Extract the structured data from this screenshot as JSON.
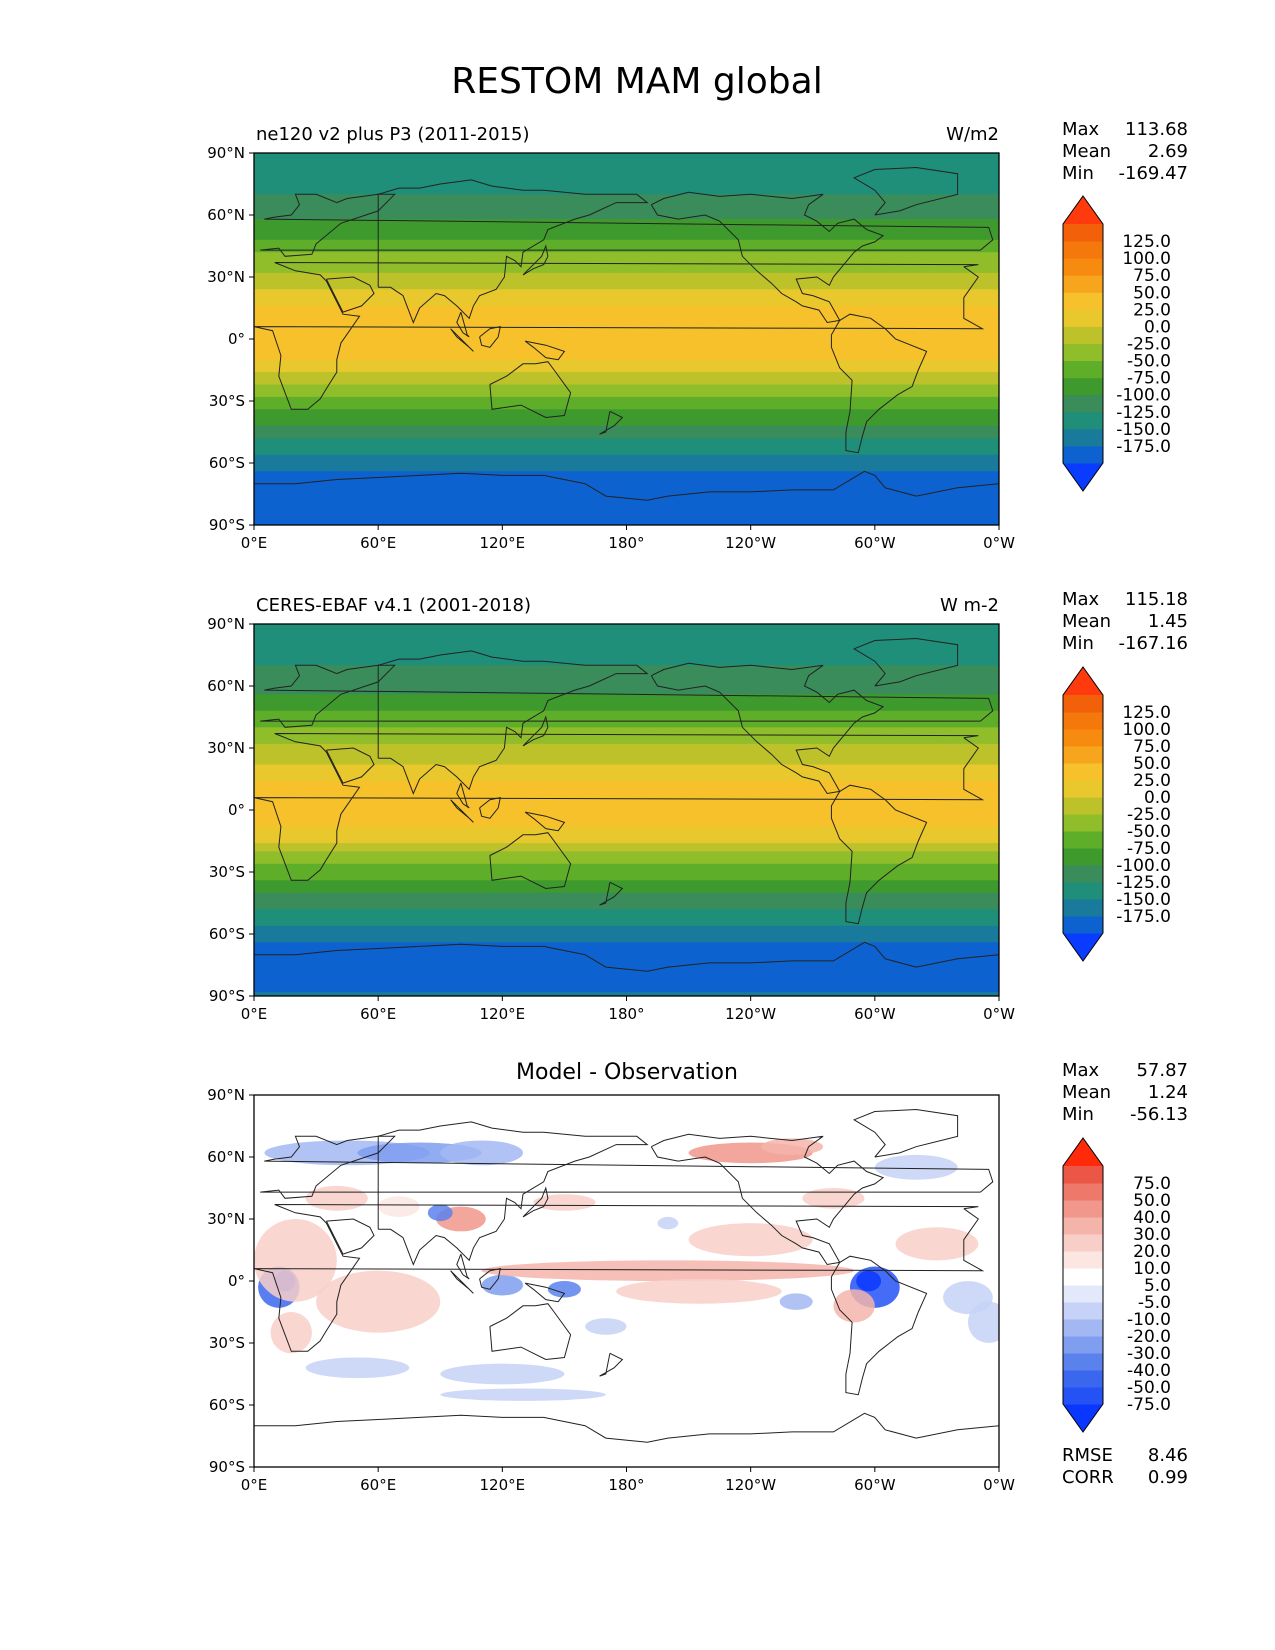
{
  "title": "RESTOM MAM global",
  "x_ticks": [
    "0°E",
    "60°E",
    "120°E",
    "180°",
    "120°W",
    "60°W",
    "0°W"
  ],
  "y_ticks": [
    "90°N",
    "60°N",
    "30°N",
    "0°",
    "30°S",
    "60°S",
    "90°S"
  ],
  "stat_labels": {
    "max": "Max",
    "mean": "Mean",
    "min": "Min",
    "rmse": "RMSE",
    "corr": "CORR"
  },
  "colors": {
    "abs": [
      "#0a3cff",
      "#0d62d0",
      "#197a9c",
      "#1f8f7a",
      "#3a8c5a",
      "#3f9a2e",
      "#5fae2a",
      "#8fbe2a",
      "#bec22a",
      "#e8c82c",
      "#f6c12a",
      "#f7a51c",
      "#f78b10",
      "#f4780b",
      "#f2600a",
      "#ff3a0d"
    ],
    "diff": [
      "#0a37ff",
      "#2452f5",
      "#3b67ee",
      "#5a82ec",
      "#7f9ef0",
      "#a3b8f3",
      "#c6d2f7",
      "#e3e9fb",
      "#ffffff",
      "#fbe6e2",
      "#f8cfc8",
      "#f4b4aa",
      "#f1978b",
      "#ee786a",
      "#eb5646",
      "#ff2a0a"
    ]
  },
  "chart_data": [
    {
      "type": "heatmap",
      "panel_label": "ne120 v2 plus P3 (2011-2015)",
      "units": "W/m2",
      "stats": {
        "max": "113.68",
        "mean": "2.69",
        "min": "-169.47"
      },
      "xlim": [
        0,
        360
      ],
      "ylim": [
        -90,
        90
      ],
      "contour_levels": [
        "125.0",
        "100.0",
        "75.0",
        "50.0",
        "25.0",
        "0.0",
        "-25.0",
        "-50.0",
        "-75.0",
        "-100.0",
        "-125.0",
        "-150.0",
        "-175.0"
      ],
      "colormap": "abs",
      "zonal_mean_profile": {
        "lat": [
          -90,
          -75,
          -68,
          -60,
          -52,
          -45,
          -38,
          -30,
          -22,
          -15,
          -8,
          0,
          8,
          15,
          22,
          30,
          38,
          45,
          52,
          60,
          70,
          80,
          90
        ],
        "value": [
          -150,
          -175,
          -162,
          -138,
          -112,
          -88,
          -62,
          -35,
          -5,
          30,
          55,
          70,
          65,
          50,
          28,
          5,
          -15,
          -38,
          -60,
          -82,
          -100,
          -105,
          -105
        ]
      }
    },
    {
      "type": "heatmap",
      "panel_label": "CERES-EBAF v4.1 (2001-2018)",
      "units": "W m-2",
      "stats": {
        "max": "115.18",
        "mean": "1.45",
        "min": "-167.16"
      },
      "xlim": [
        0,
        360
      ],
      "ylim": [
        -90,
        90
      ],
      "contour_levels": [
        "125.0",
        "100.0",
        "75.0",
        "50.0",
        "25.0",
        "0.0",
        "-25.0",
        "-50.0",
        "-75.0",
        "-100.0",
        "-125.0",
        "-150.0",
        "-175.0"
      ],
      "colormap": "abs",
      "zonal_mean_profile": {
        "lat": [
          -90,
          -75,
          -68,
          -60,
          -52,
          -45,
          -38,
          -30,
          -22,
          -15,
          -8,
          0,
          8,
          15,
          22,
          30,
          38,
          45,
          52,
          60,
          70,
          80,
          90
        ],
        "value": [
          -148,
          -165,
          -160,
          -140,
          -115,
          -90,
          -65,
          -38,
          -8,
          25,
          50,
          66,
          62,
          48,
          26,
          4,
          -16,
          -40,
          -62,
          -84,
          -100,
          -104,
          -104
        ]
      }
    },
    {
      "type": "heatmap",
      "title": "Model - Observation",
      "stats": {
        "max": "57.87",
        "mean": "1.24",
        "min": "-56.13"
      },
      "rmse": "8.46",
      "corr": "0.99",
      "xlim": [
        0,
        360
      ],
      "ylim": [
        -90,
        90
      ],
      "contour_levels": [
        "75.0",
        "50.0",
        "40.0",
        "30.0",
        "20.0",
        "10.0",
        "5.0",
        "-5.0",
        "-10.0",
        "-20.0",
        "-30.0",
        "-40.0",
        "-50.0",
        "-75.0"
      ],
      "colormap": "diff"
    }
  ]
}
